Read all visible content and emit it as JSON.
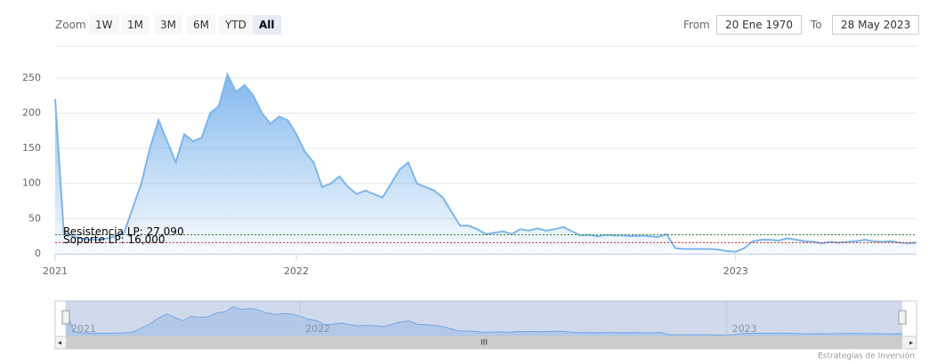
{
  "range_selector": {
    "zoom_label": "Zoom",
    "buttons": [
      "1W",
      "1M",
      "3M",
      "6M",
      "YTD",
      "All"
    ],
    "from_label": "From",
    "from_value": "20 Ene 1970",
    "to_label": "To",
    "to_value": "28 May 2023"
  },
  "chart_data": {
    "type": "area",
    "categories": [
      "2021",
      null,
      null,
      null,
      null,
      null,
      null,
      null,
      null,
      null,
      null,
      null,
      null,
      null,
      null,
      null,
      null,
      null,
      null,
      null,
      null,
      null,
      null,
      null,
      null,
      null,
      null,
      null,
      "2022",
      null,
      null,
      null,
      null,
      null,
      null,
      null,
      null,
      null,
      null,
      null,
      null,
      null,
      null,
      null,
      null,
      null,
      null,
      null,
      null,
      null,
      null,
      null,
      null,
      null,
      null,
      null,
      null,
      null,
      null,
      null,
      null,
      null,
      null,
      null,
      null,
      null,
      null,
      null,
      null,
      null,
      null,
      null,
      null,
      null,
      null,
      null,
      null,
      null,
      null,
      "2023",
      null,
      null,
      null,
      null,
      null,
      null,
      null,
      null,
      null,
      null,
      null,
      null,
      null,
      null,
      null,
      null,
      null,
      null,
      null,
      null,
      null
    ],
    "values": [
      220,
      30,
      25,
      22,
      20,
      20,
      22,
      25,
      30,
      65,
      100,
      150,
      190,
      160,
      130,
      170,
      160,
      165,
      200,
      210,
      255,
      230,
      240,
      225,
      200,
      185,
      195,
      190,
      170,
      145,
      130,
      95,
      100,
      110,
      95,
      85,
      90,
      85,
      80,
      100,
      120,
      130,
      100,
      95,
      90,
      80,
      60,
      40,
      40,
      35,
      28,
      30,
      32,
      28,
      35,
      33,
      36,
      33,
      35,
      38,
      32,
      26,
      27,
      25,
      27,
      26,
      26,
      25,
      26,
      25,
      24,
      28,
      8,
      7,
      7,
      7,
      7,
      6,
      4,
      3,
      8,
      18,
      20,
      20,
      19,
      22,
      20,
      18,
      17,
      15,
      17,
      16,
      17,
      18,
      20,
      18,
      17,
      18,
      16,
      15,
      16
    ],
    "color": "#7cb5ec",
    "ylim": [
      0,
      275
    ],
    "yticks": [
      0,
      50,
      100,
      150,
      200,
      250
    ],
    "grid": true,
    "plot_lines": [
      {
        "label": "Resistencia LP: 27,090",
        "value": 27.09,
        "color": "#2e7d32"
      },
      {
        "label": "Soporte LP: 16,000",
        "value": 16,
        "color": "#c62828"
      }
    ]
  },
  "navigator": {
    "labels": [
      "2021",
      "2022",
      "2023"
    ]
  },
  "credits": "Estrategias de Inversión"
}
